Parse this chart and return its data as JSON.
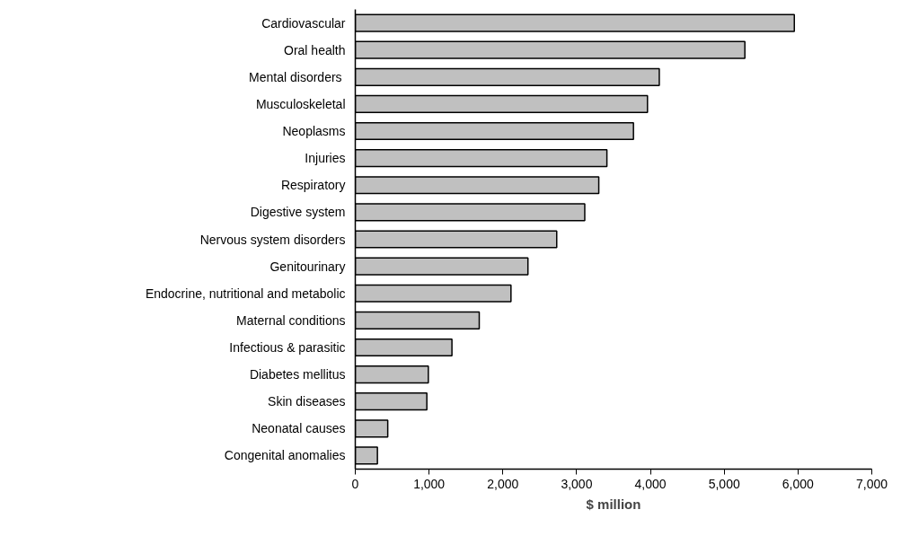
{
  "chart_data": {
    "type": "bar",
    "orientation": "horizontal",
    "xlabel": "$ million",
    "categories": [
      "Cardiovascular",
      "Oral health",
      "Mental disorders ",
      "Musculoskeletal",
      "Neoplasms",
      "Injuries",
      "Respiratory",
      "Digestive system",
      "Nervous system disorders",
      "Genitourinary",
      "Endocrine, nutritional and metabolic",
      "Maternal conditions",
      "Infectious & parasitic",
      "Diabetes mellitus",
      "Skin diseases",
      "Neonatal causes",
      "Congenital anomalies"
    ],
    "values": [
      5950,
      5280,
      4120,
      3960,
      3770,
      3410,
      3300,
      3110,
      2730,
      2340,
      2110,
      1680,
      1310,
      990,
      970,
      440,
      300
    ],
    "color": "#c0c0c0",
    "xlim": [
      0,
      7000
    ],
    "xticks": [
      {
        "value": 0,
        "label": "0"
      },
      {
        "value": 1000,
        "label": "1,000"
      },
      {
        "value": 2000,
        "label": "2,000"
      },
      {
        "value": 3000,
        "label": "3,000"
      },
      {
        "value": 4000,
        "label": "4,000"
      },
      {
        "value": 5000,
        "label": "5,000"
      },
      {
        "value": 6000,
        "label": "6,000"
      },
      {
        "value": 7000,
        "label": "7,000"
      }
    ],
    "grid": false
  }
}
